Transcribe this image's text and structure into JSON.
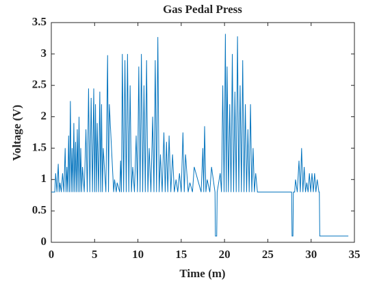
{
  "chart_data": {
    "type": "line",
    "title": "Gas Pedal Press",
    "xlabel": "Time (m)",
    "ylabel": "Voltage (V)",
    "xlim": [
      0,
      35
    ],
    "xticks": [
      0,
      5,
      10,
      15,
      20,
      25,
      30,
      35
    ],
    "ylim": [
      0,
      3.5
    ],
    "yticks": [
      0,
      0.5,
      1,
      1.5,
      2,
      2.5,
      3,
      3.5
    ],
    "grid": false,
    "x": [
      0,
      0.4,
      0.5,
      0.65,
      0.8,
      0.9,
      1.0,
      1.15,
      1.3,
      1.45,
      1.6,
      1.7,
      1.8,
      1.9,
      2.0,
      2.1,
      2.2,
      2.3,
      2.4,
      2.5,
      2.6,
      2.7,
      2.8,
      2.9,
      3.0,
      3.1,
      3.2,
      3.3,
      3.4,
      3.5,
      3.6,
      3.8,
      4.0,
      4.15,
      4.3,
      4.45,
      4.6,
      4.75,
      4.9,
      5.0,
      5.1,
      5.2,
      5.3,
      5.45,
      5.6,
      5.7,
      5.8,
      5.9,
      6.0,
      6.3,
      6.5,
      6.6,
      6.7,
      7.2,
      7.3,
      7.5,
      7.6,
      7.9,
      8.0,
      8.1,
      8.2,
      8.35,
      8.5,
      8.65,
      8.8,
      8.95,
      9.1,
      9.25,
      9.4,
      9.6,
      9.8,
      9.95,
      10.1,
      10.25,
      10.4,
      10.55,
      10.7,
      10.85,
      11.0,
      11.15,
      11.3,
      11.5,
      11.7,
      11.85,
      12.0,
      12.15,
      12.3,
      12.45,
      12.6,
      12.8,
      13.0,
      13.15,
      13.3,
      13.45,
      13.6,
      13.8,
      14.0,
      14.2,
      14.4,
      14.6,
      14.8,
      15.0,
      15.2,
      15.35,
      15.5,
      15.8,
      16.0,
      16.3,
      16.5,
      17.3,
      17.5,
      17.6,
      17.7,
      17.85,
      18.0,
      18.3,
      18.5,
      18.9,
      18.95,
      19.1,
      19.15,
      19.5,
      19.65,
      19.8,
      19.95,
      20.1,
      20.2,
      20.3,
      20.45,
      20.6,
      20.75,
      20.9,
      21.05,
      21.2,
      21.35,
      21.5,
      21.65,
      21.8,
      21.95,
      22.1,
      22.25,
      22.4,
      22.55,
      22.7,
      22.85,
      23.0,
      23.15,
      23.3,
      23.45,
      23.6,
      23.8,
      27.75,
      27.8,
      27.9,
      27.95,
      28.1,
      28.2,
      28.4,
      28.6,
      28.75,
      28.9,
      29.05,
      29.2,
      29.35,
      29.5,
      29.65,
      29.8,
      29.95,
      30.1,
      30.25,
      30.4,
      30.55,
      30.7,
      30.9,
      30.95,
      31.0,
      34.3
    ],
    "series": [
      {
        "color": "#0072bd",
        "values": [
          0.8,
          0.8,
          1.1,
          0.8,
          1.25,
          0.8,
          0.95,
          0.8,
          1.1,
          0.8,
          1.5,
          0.8,
          1.2,
          0.8,
          1.7,
          0.8,
          2.25,
          0.8,
          1.5,
          0.8,
          1.9,
          0.8,
          1.6,
          0.8,
          1.8,
          0.8,
          2.0,
          0.8,
          1.5,
          0.8,
          1.2,
          0.8,
          1.8,
          0.8,
          2.45,
          0.8,
          2.3,
          0.8,
          2.45,
          0.8,
          2.2,
          0.8,
          1.9,
          0.8,
          2.4,
          0.8,
          2.2,
          0.8,
          1.5,
          0.8,
          2.98,
          0.8,
          2.2,
          0.8,
          1.0,
          0.8,
          0.95,
          0.8,
          1.3,
          0.8,
          3.0,
          0.8,
          2.9,
          0.8,
          3.0,
          0.8,
          2.5,
          0.8,
          1.2,
          0.8,
          1.7,
          0.8,
          2.8,
          0.8,
          3.0,
          0.8,
          2.5,
          0.8,
          2.9,
          0.8,
          1.5,
          0.8,
          2.0,
          0.8,
          2.9,
          0.8,
          3.27,
          0.8,
          1.4,
          0.8,
          1.75,
          0.8,
          1.6,
          0.8,
          1.7,
          0.8,
          1.4,
          0.8,
          1.0,
          0.8,
          1.1,
          0.8,
          1.75,
          0.8,
          1.4,
          0.8,
          0.95,
          0.8,
          1.2,
          0.8,
          1.5,
          0.8,
          1.85,
          0.8,
          1.0,
          0.8,
          1.2,
          0.8,
          0.1,
          0.1,
          0.8,
          1.1,
          0.8,
          2.5,
          0.8,
          3.32,
          0.8,
          2.8,
          0.8,
          2.2,
          0.8,
          3.0,
          0.8,
          2.4,
          0.8,
          3.28,
          0.8,
          2.5,
          0.8,
          2.9,
          0.8,
          2.2,
          0.8,
          1.8,
          0.8,
          2.2,
          0.8,
          1.5,
          0.8,
          1.1,
          0.8,
          0.8,
          0.1,
          0.1,
          0.8,
          0.8,
          1.0,
          0.8,
          1.3,
          0.8,
          1.5,
          0.8,
          1.2,
          0.8,
          0.95,
          0.8,
          1.1,
          0.8,
          1.1,
          0.8,
          1.1,
          0.8,
          1.0,
          0.8,
          0.8,
          0.1,
          0.1
        ]
      }
    ]
  }
}
